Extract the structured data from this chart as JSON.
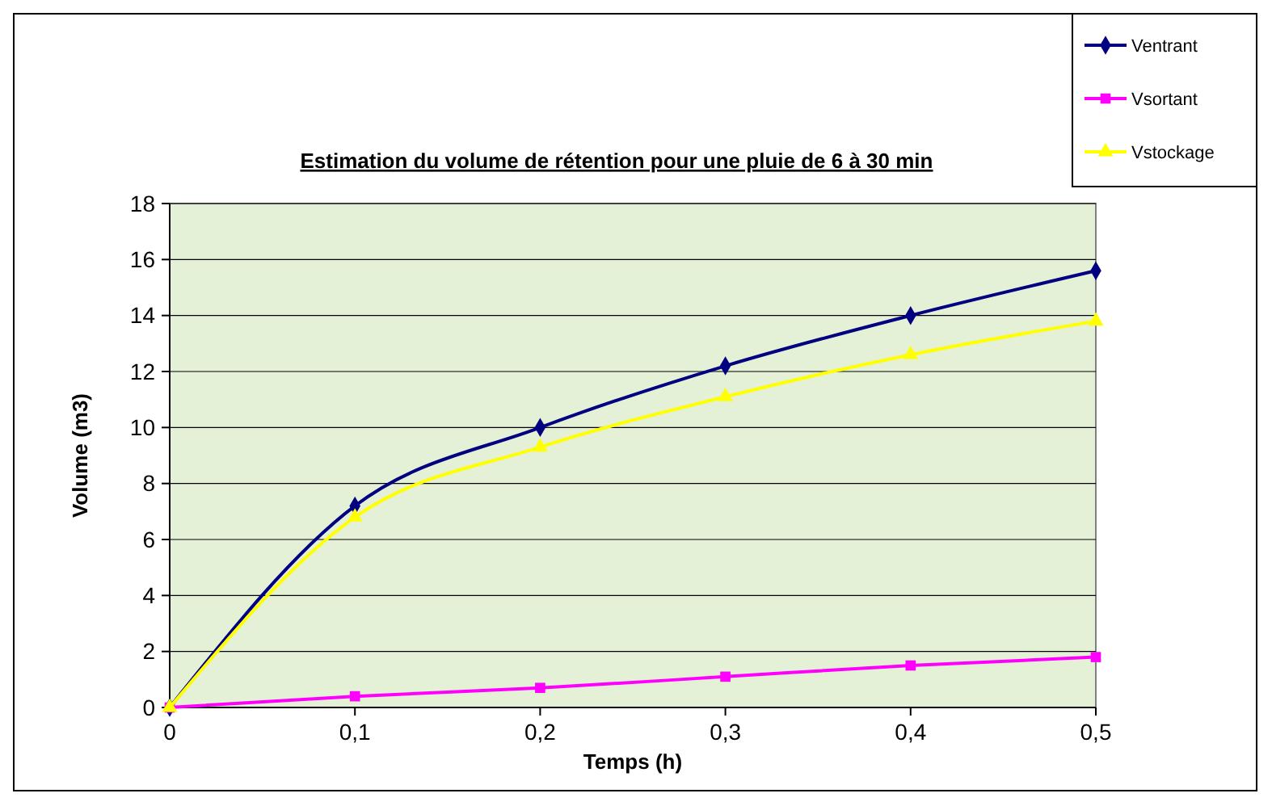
{
  "chart_data": {
    "type": "line",
    "title": "Estimation du volume de rétention pour une pluie de 6 à 30 min",
    "xlabel": "Temps (h)",
    "ylabel": "Volume (m3)",
    "x": [
      0,
      0.1,
      0.2,
      0.3,
      0.4,
      0.5
    ],
    "series": [
      {
        "name": "Ventrant",
        "color": "#000080",
        "marker": "diamond",
        "values": [
          0,
          7.2,
          10.0,
          12.2,
          14.0,
          15.6
        ]
      },
      {
        "name": "Vsortant",
        "color": "#ff00ff",
        "marker": "square",
        "values": [
          0,
          0.4,
          0.7,
          1.1,
          1.5,
          1.8
        ]
      },
      {
        "name": "Vstockage",
        "color": "#ffff00",
        "marker": "triangle",
        "values": [
          0,
          6.8,
          9.3,
          11.1,
          12.6,
          13.8
        ]
      }
    ],
    "xlim": [
      0,
      0.5
    ],
    "xticks": [
      0,
      {
        "value": 0.1,
        "label": "0,1"
      },
      {
        "value": 0.2,
        "label": "0,2"
      },
      {
        "value": 0.3,
        "label": "0,3"
      },
      {
        "value": 0.4,
        "label": "0,4"
      },
      {
        "value": 0.5,
        "label": "0,5"
      }
    ],
    "ylim": [
      0,
      18
    ],
    "yticks": [
      0,
      2,
      4,
      6,
      8,
      10,
      12,
      14,
      16,
      18
    ],
    "grid": "y",
    "legend": "top right",
    "line_style": "solid"
  }
}
